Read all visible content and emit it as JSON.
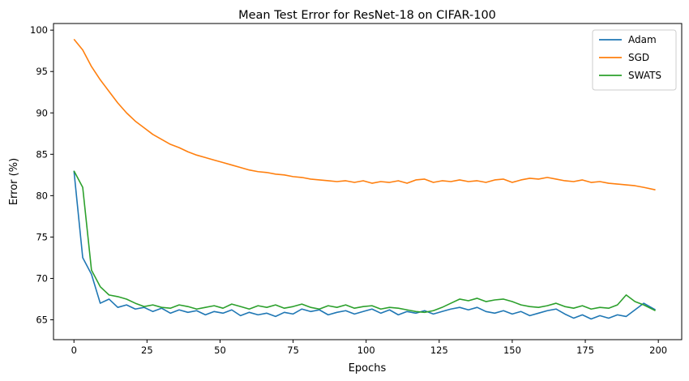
{
  "chart_data": {
    "type": "line",
    "title": "Mean Test Error for ResNet-18 on CIFAR-100",
    "xlabel": "Epochs",
    "ylabel": "Error (%)",
    "xlim": [
      -7,
      208
    ],
    "ylim": [
      62.6,
      100.8
    ],
    "xticks": [
      0,
      25,
      50,
      75,
      100,
      125,
      150,
      175,
      200
    ],
    "yticks": [
      65,
      70,
      75,
      80,
      85,
      90,
      95,
      100
    ],
    "grid": false,
    "legend_position": "top-right",
    "x": [
      0,
      3,
      6,
      9,
      12,
      15,
      18,
      21,
      24,
      27,
      30,
      33,
      36,
      39,
      42,
      45,
      48,
      51,
      54,
      57,
      60,
      63,
      66,
      69,
      72,
      75,
      78,
      81,
      84,
      87,
      90,
      93,
      96,
      99,
      102,
      105,
      108,
      111,
      114,
      117,
      120,
      123,
      126,
      129,
      132,
      135,
      138,
      141,
      144,
      147,
      150,
      153,
      156,
      159,
      162,
      165,
      168,
      171,
      174,
      177,
      180,
      183,
      186,
      189,
      192,
      195,
      199
    ],
    "series": [
      {
        "name": "Adam",
        "color": "#1f77b4",
        "values": [
          83.0,
          72.5,
          70.5,
          67.0,
          67.5,
          66.5,
          66.8,
          66.3,
          66.5,
          66.0,
          66.4,
          65.8,
          66.2,
          65.9,
          66.1,
          65.6,
          66.0,
          65.8,
          66.2,
          65.5,
          65.9,
          65.6,
          65.8,
          65.4,
          65.9,
          65.7,
          66.3,
          66.0,
          66.2,
          65.6,
          65.9,
          66.1,
          65.7,
          66.0,
          66.3,
          65.8,
          66.2,
          65.6,
          66.0,
          65.8,
          66.1,
          65.7,
          66.0,
          66.3,
          66.5,
          66.2,
          66.5,
          66.0,
          65.8,
          66.1,
          65.7,
          66.0,
          65.5,
          65.8,
          66.1,
          66.3,
          65.7,
          65.2,
          65.6,
          65.1,
          65.5,
          65.2,
          65.6,
          65.4,
          66.2,
          67.0,
          66.2
        ]
      },
      {
        "name": "SGD",
        "color": "#ff7f0e",
        "values": [
          98.9,
          97.6,
          95.6,
          94.0,
          92.6,
          91.2,
          90.0,
          89.0,
          88.2,
          87.4,
          86.8,
          86.2,
          85.8,
          85.3,
          84.9,
          84.6,
          84.3,
          84.0,
          83.7,
          83.4,
          83.1,
          82.9,
          82.8,
          82.6,
          82.5,
          82.3,
          82.2,
          82.0,
          81.9,
          81.8,
          81.7,
          81.8,
          81.6,
          81.8,
          81.5,
          81.7,
          81.6,
          81.8,
          81.5,
          81.9,
          82.0,
          81.6,
          81.8,
          81.7,
          81.9,
          81.7,
          81.8,
          81.6,
          81.9,
          82.0,
          81.6,
          81.9,
          82.1,
          82.0,
          82.2,
          82.0,
          81.8,
          81.7,
          81.9,
          81.6,
          81.7,
          81.5,
          81.4,
          81.3,
          81.2,
          81.0,
          80.7
        ]
      },
      {
        "name": "SWATS",
        "color": "#2ca02c",
        "values": [
          83.0,
          81.0,
          71.0,
          69.0,
          68.0,
          67.8,
          67.5,
          67.0,
          66.6,
          66.8,
          66.5,
          66.4,
          66.8,
          66.6,
          66.3,
          66.5,
          66.7,
          66.4,
          66.9,
          66.6,
          66.3,
          66.7,
          66.5,
          66.8,
          66.4,
          66.6,
          66.9,
          66.5,
          66.3,
          66.7,
          66.5,
          66.8,
          66.4,
          66.6,
          66.7,
          66.3,
          66.5,
          66.4,
          66.2,
          66.0,
          65.9,
          66.1,
          66.5,
          67.0,
          67.5,
          67.3,
          67.6,
          67.2,
          67.4,
          67.5,
          67.2,
          66.8,
          66.6,
          66.5,
          66.7,
          67.0,
          66.6,
          66.4,
          66.7,
          66.3,
          66.5,
          66.4,
          66.8,
          68.0,
          67.2,
          66.8,
          66.1
        ]
      }
    ]
  }
}
